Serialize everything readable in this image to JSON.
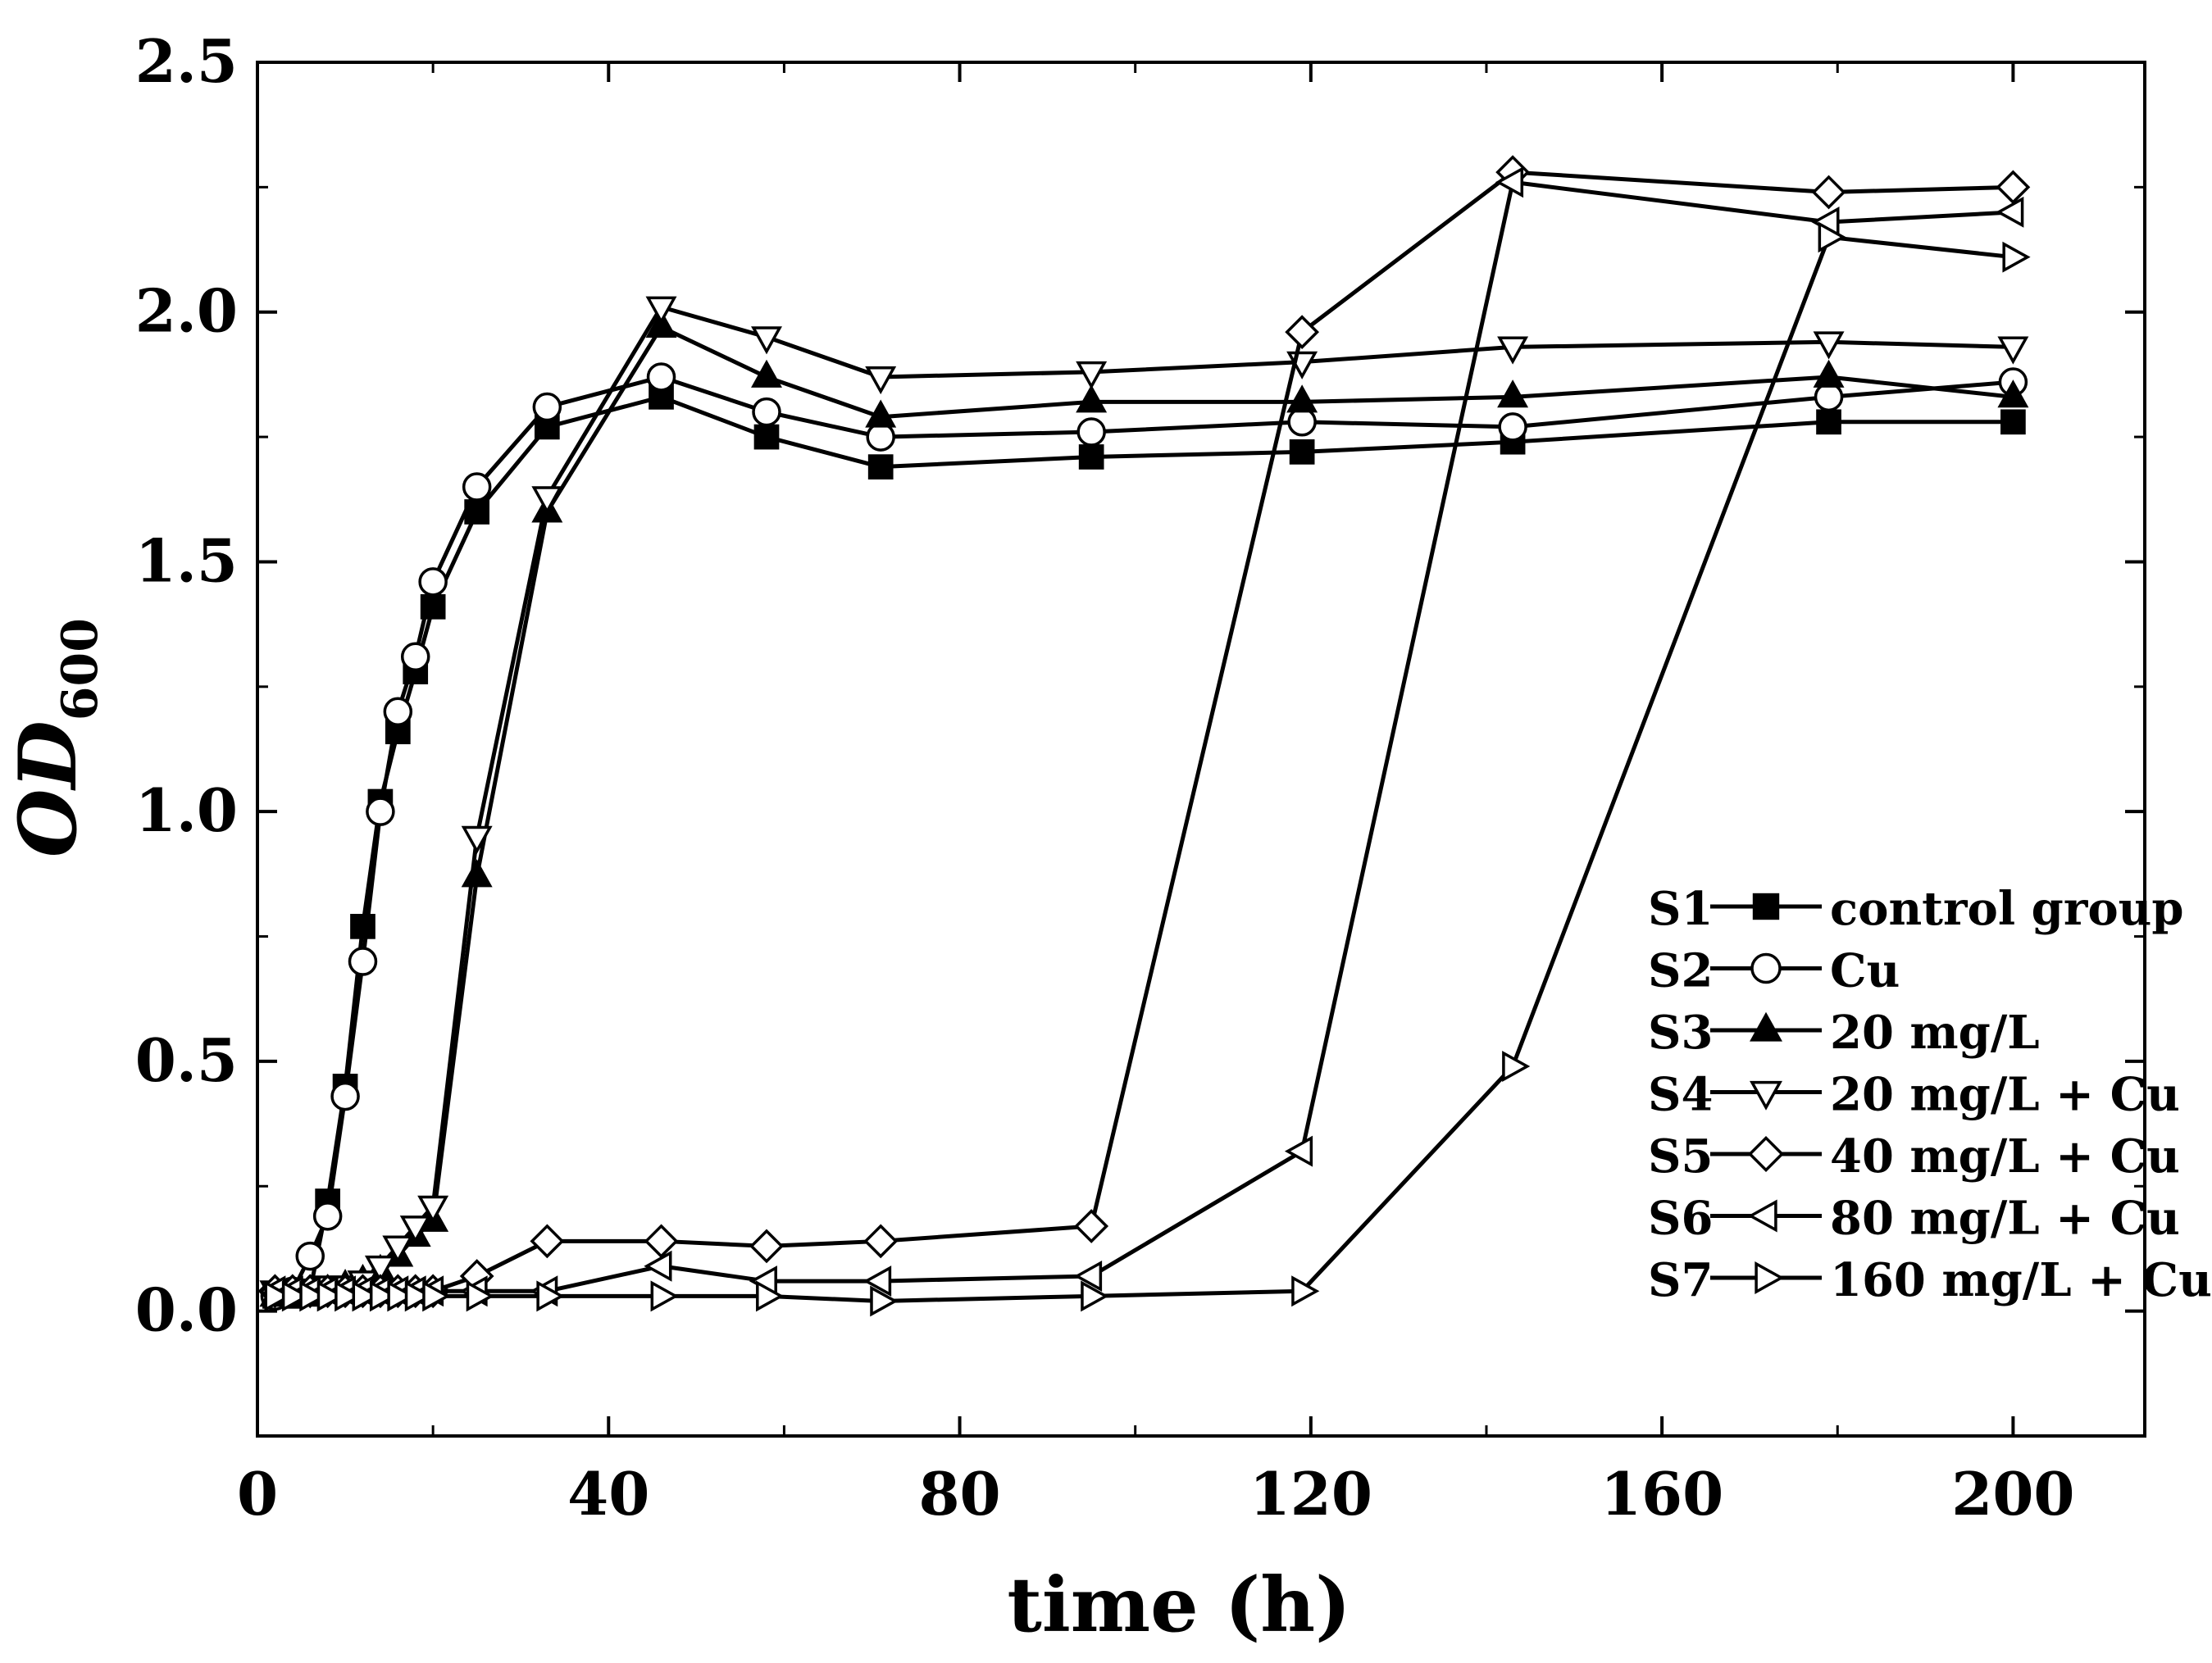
{
  "chart_data": {
    "type": "line",
    "title": "",
    "xlabel": "time (h)",
    "ylabel": "OD",
    "ylabel_subscript": "600",
    "xlim": [
      0,
      215
    ],
    "ylim": [
      -0.25,
      2.5
    ],
    "xticks": [
      0,
      40,
      80,
      120,
      160,
      200
    ],
    "xtick_labels": [
      "0",
      "40",
      "80",
      "120",
      "160",
      "200"
    ],
    "yticks": [
      0.0,
      0.5,
      1.0,
      1.5,
      2.0,
      2.5
    ],
    "ytick_labels": [
      "0.0",
      "0.5",
      "1.0",
      "1.5",
      "2.0",
      "2.5"
    ],
    "grid": false,
    "legend_position": "bottom-right",
    "series": [
      {
        "id": "S1",
        "name": "control group",
        "marker": "square",
        "filled": true,
        "x": [
          2,
          4,
          6,
          8,
          10,
          12,
          14,
          16,
          18,
          20,
          25,
          33,
          46,
          58,
          71,
          95,
          119,
          143,
          179,
          200
        ],
        "y": [
          0.03,
          0.03,
          0.04,
          0.22,
          0.45,
          0.77,
          1.02,
          1.16,
          1.28,
          1.41,
          1.6,
          1.77,
          1.83,
          1.75,
          1.69,
          1.71,
          1.72,
          1.74,
          1.78,
          1.78
        ]
      },
      {
        "id": "S2",
        "name": "Cu",
        "marker": "circle",
        "filled": false,
        "x": [
          2,
          4,
          6,
          8,
          10,
          12,
          14,
          16,
          18,
          20,
          25,
          33,
          46,
          58,
          71,
          95,
          119,
          143,
          179,
          200
        ],
        "y": [
          0.03,
          0.04,
          0.11,
          0.19,
          0.43,
          0.7,
          1.0,
          1.2,
          1.31,
          1.46,
          1.65,
          1.81,
          1.87,
          1.8,
          1.75,
          1.76,
          1.78,
          1.77,
          1.83,
          1.86
        ]
      },
      {
        "id": "S3",
        "name": "20 mg/L",
        "marker": "triangle-up",
        "filled": true,
        "x": [
          2,
          4,
          6,
          8,
          10,
          12,
          14,
          16,
          18,
          20,
          25,
          33,
          46,
          58,
          71,
          95,
          119,
          143,
          179,
          200
        ],
        "y": [
          0.03,
          0.03,
          0.03,
          0.04,
          0.05,
          0.06,
          0.08,
          0.11,
          0.15,
          0.18,
          0.87,
          1.6,
          1.97,
          1.87,
          1.79,
          1.82,
          1.82,
          1.83,
          1.87,
          1.83
        ]
      },
      {
        "id": "S4",
        "name": "20 mg/L + Cu",
        "marker": "triangle-down",
        "filled": false,
        "x": [
          2,
          4,
          6,
          8,
          10,
          12,
          14,
          16,
          18,
          20,
          25,
          33,
          46,
          58,
          71,
          95,
          119,
          143,
          179,
          200
        ],
        "y": [
          0.04,
          0.04,
          0.04,
          0.05,
          0.05,
          0.06,
          0.09,
          0.13,
          0.17,
          0.21,
          0.95,
          1.63,
          2.01,
          1.95,
          1.87,
          1.88,
          1.9,
          1.93,
          1.94,
          1.93
        ]
      },
      {
        "id": "S5",
        "name": "40 mg/L + Cu",
        "marker": "diamond",
        "filled": false,
        "x": [
          2,
          4,
          6,
          8,
          10,
          12,
          14,
          16,
          18,
          20,
          25,
          33,
          46,
          58,
          71,
          95,
          119,
          143,
          179,
          200
        ],
        "y": [
          0.04,
          0.04,
          0.04,
          0.04,
          0.04,
          0.04,
          0.04,
          0.04,
          0.04,
          0.04,
          0.07,
          0.14,
          0.14,
          0.13,
          0.14,
          0.17,
          1.96,
          2.28,
          2.24,
          2.25
        ]
      },
      {
        "id": "S6",
        "name": "80 mg/L + Cu",
        "marker": "triangle-left",
        "filled": false,
        "x": [
          2,
          4,
          6,
          8,
          10,
          12,
          14,
          16,
          18,
          20,
          25,
          33,
          46,
          58,
          71,
          95,
          119,
          143,
          179,
          200
        ],
        "y": [
          0.04,
          0.04,
          0.04,
          0.04,
          0.04,
          0.04,
          0.04,
          0.04,
          0.04,
          0.04,
          0.04,
          0.04,
          0.09,
          0.06,
          0.06,
          0.07,
          0.32,
          2.26,
          2.18,
          2.2
        ]
      },
      {
        "id": "S7",
        "name": "160 mg/L + Cu",
        "marker": "triangle-right",
        "filled": false,
        "x": [
          2,
          4,
          6,
          8,
          10,
          12,
          14,
          16,
          18,
          20,
          25,
          33,
          46,
          58,
          71,
          95,
          119,
          143,
          179,
          200
        ],
        "y": [
          0.03,
          0.03,
          0.03,
          0.03,
          0.03,
          0.03,
          0.03,
          0.03,
          0.03,
          0.03,
          0.03,
          0.03,
          0.03,
          0.03,
          0.02,
          0.03,
          0.04,
          0.49,
          2.15,
          2.11
        ]
      }
    ]
  }
}
